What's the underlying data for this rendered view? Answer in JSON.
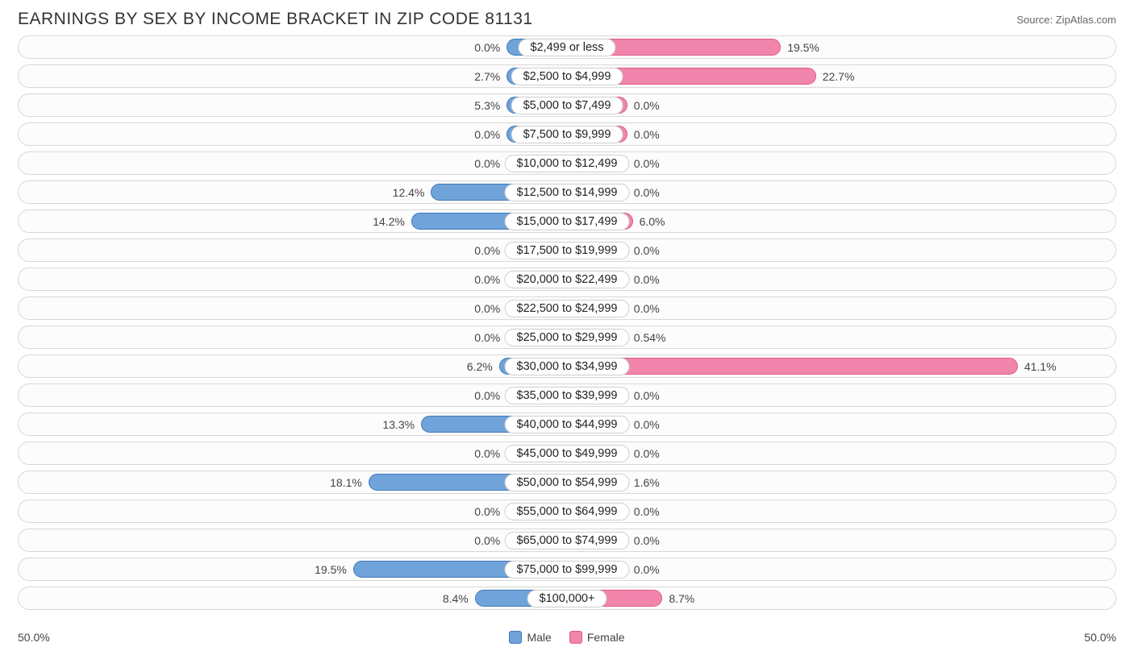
{
  "title": "EARNINGS BY SEX BY INCOME BRACKET IN ZIP CODE 81131",
  "source": "Source: ZipAtlas.com",
  "axis_max_pct": 50.0,
  "axis_left_label": "50.0%",
  "axis_right_label": "50.0%",
  "min_bar_pct": 5.5,
  "colors": {
    "male_fill": "#6fa3da",
    "male_border": "#3f78b8",
    "female_fill": "#f185ab",
    "female_border": "#e05a8b",
    "row_border": "#d8d8d8",
    "row_bg": "#fcfcfc",
    "text": "#333333"
  },
  "legend": {
    "male": "Male",
    "female": "Female"
  },
  "rows": [
    {
      "label": "$2,499 or less",
      "male": 0.0,
      "female": 19.5,
      "male_label": "0.0%",
      "female_label": "19.5%"
    },
    {
      "label": "$2,500 to $4,999",
      "male": 2.7,
      "female": 22.7,
      "male_label": "2.7%",
      "female_label": "22.7%"
    },
    {
      "label": "$5,000 to $7,499",
      "male": 5.3,
      "female": 0.0,
      "male_label": "5.3%",
      "female_label": "0.0%"
    },
    {
      "label": "$7,500 to $9,999",
      "male": 0.0,
      "female": 0.0,
      "male_label": "0.0%",
      "female_label": "0.0%"
    },
    {
      "label": "$10,000 to $12,499",
      "male": 0.0,
      "female": 0.0,
      "male_label": "0.0%",
      "female_label": "0.0%"
    },
    {
      "label": "$12,500 to $14,999",
      "male": 12.4,
      "female": 0.0,
      "male_label": "12.4%",
      "female_label": "0.0%"
    },
    {
      "label": "$15,000 to $17,499",
      "male": 14.2,
      "female": 6.0,
      "male_label": "14.2%",
      "female_label": "6.0%"
    },
    {
      "label": "$17,500 to $19,999",
      "male": 0.0,
      "female": 0.0,
      "male_label": "0.0%",
      "female_label": "0.0%"
    },
    {
      "label": "$20,000 to $22,499",
      "male": 0.0,
      "female": 0.0,
      "male_label": "0.0%",
      "female_label": "0.0%"
    },
    {
      "label": "$22,500 to $24,999",
      "male": 0.0,
      "female": 0.0,
      "male_label": "0.0%",
      "female_label": "0.0%"
    },
    {
      "label": "$25,000 to $29,999",
      "male": 0.0,
      "female": 0.54,
      "male_label": "0.0%",
      "female_label": "0.54%"
    },
    {
      "label": "$30,000 to $34,999",
      "male": 6.2,
      "female": 41.1,
      "male_label": "6.2%",
      "female_label": "41.1%"
    },
    {
      "label": "$35,000 to $39,999",
      "male": 0.0,
      "female": 0.0,
      "male_label": "0.0%",
      "female_label": "0.0%"
    },
    {
      "label": "$40,000 to $44,999",
      "male": 13.3,
      "female": 0.0,
      "male_label": "13.3%",
      "female_label": "0.0%"
    },
    {
      "label": "$45,000 to $49,999",
      "male": 0.0,
      "female": 0.0,
      "male_label": "0.0%",
      "female_label": "0.0%"
    },
    {
      "label": "$50,000 to $54,999",
      "male": 18.1,
      "female": 1.6,
      "male_label": "18.1%",
      "female_label": "1.6%"
    },
    {
      "label": "$55,000 to $64,999",
      "male": 0.0,
      "female": 0.0,
      "male_label": "0.0%",
      "female_label": "0.0%"
    },
    {
      "label": "$65,000 to $74,999",
      "male": 0.0,
      "female": 0.0,
      "male_label": "0.0%",
      "female_label": "0.0%"
    },
    {
      "label": "$75,000 to $99,999",
      "male": 19.5,
      "female": 0.0,
      "male_label": "19.5%",
      "female_label": "0.0%"
    },
    {
      "label": "$100,000+",
      "male": 8.4,
      "female": 8.7,
      "male_label": "8.4%",
      "female_label": "8.7%"
    }
  ]
}
